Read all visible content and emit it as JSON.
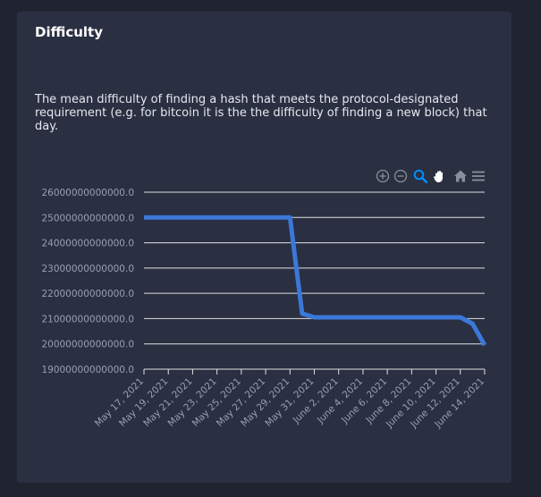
{
  "card": {
    "title": "Difficulty",
    "description": "The mean difficulty of finding a hash that meets the protocol-designated requirement (e.g. for bitcoin it is the the difficulty of finding a new block) that day."
  },
  "toolbar": {
    "icons": [
      "zoom-in-icon",
      "zoom-out-icon",
      "zoom-select-icon",
      "pan-icon",
      "home-icon",
      "menu-icon"
    ],
    "active_icon": "zoom-select-icon",
    "active_color": "#008ffb",
    "icon_color": "#8a8f9c"
  },
  "colors": {
    "line": "#3b78d8",
    "grid": "#e0e0e0",
    "label": "#9a9fb0"
  },
  "chart_data": {
    "type": "line",
    "title": "Difficulty",
    "xlabel": "",
    "ylabel": "",
    "ylim": [
      19000000000000.0,
      26000000000000.0
    ],
    "yticks": [
      19000000000000.0,
      20000000000000.0,
      21000000000000.0,
      22000000000000.0,
      23000000000000.0,
      24000000000000.0,
      25000000000000.0,
      26000000000000.0
    ],
    "ytick_labels": [
      "19000000000000.0",
      "20000000000000.0",
      "21000000000000.0",
      "22000000000000.0",
      "23000000000000.0",
      "24000000000000.0",
      "25000000000000.0",
      "26000000000000.0"
    ],
    "xlim": [
      "2021-05-17",
      "2021-06-14"
    ],
    "xtick_labels": [
      "May 17, 2021",
      "May 19, 2021",
      "May 21, 2021",
      "May 23, 2021",
      "May 25, 2021",
      "May 27, 2021",
      "May 29, 2021",
      "May 31, 2021",
      "June 2, 2021",
      "June 4, 2021",
      "June 6, 2021",
      "June 8, 2021",
      "June 10, 2021",
      "June 12, 2021",
      "June 14, 2021"
    ],
    "grid": true,
    "series": [
      {
        "x": [
          "2021-05-17",
          "2021-05-18",
          "2021-05-19",
          "2021-05-20",
          "2021-05-21",
          "2021-05-22",
          "2021-05-23",
          "2021-05-24",
          "2021-05-25",
          "2021-05-26",
          "2021-05-27",
          "2021-05-28",
          "2021-05-29",
          "2021-05-30",
          "2021-05-31",
          "2021-06-01",
          "2021-06-02",
          "2021-06-03",
          "2021-06-04",
          "2021-06-05",
          "2021-06-06",
          "2021-06-07",
          "2021-06-08",
          "2021-06-09",
          "2021-06-10",
          "2021-06-11",
          "2021-06-12",
          "2021-06-13",
          "2021-06-14"
        ],
        "values": [
          25000000000000,
          25000000000000,
          25000000000000,
          25000000000000,
          25000000000000,
          25000000000000,
          25000000000000,
          25000000000000,
          25000000000000,
          25000000000000,
          25000000000000,
          25000000000000,
          25000000000000,
          21200000000000,
          21050000000000,
          21050000000000,
          21050000000000,
          21050000000000,
          21050000000000,
          21050000000000,
          21050000000000,
          21050000000000,
          21050000000000,
          21050000000000,
          21050000000000,
          21050000000000,
          21050000000000,
          20800000000000,
          19950000000000
        ]
      }
    ]
  }
}
